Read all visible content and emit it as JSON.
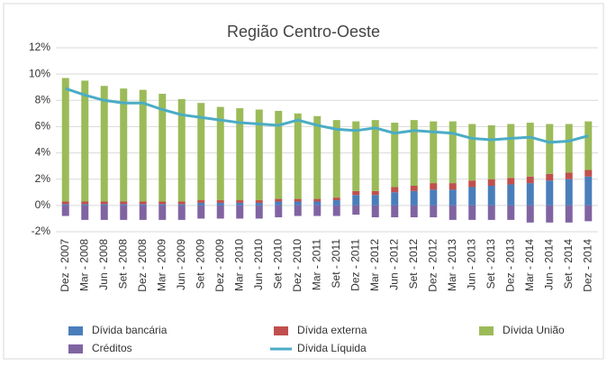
{
  "chart_data": {
    "type": "bar",
    "title": "Região Centro-Oeste",
    "stacked": true,
    "grid": true,
    "categories": [
      "Dez - 2007",
      "Mar - 2008",
      "Jun - 2008",
      "Set - 2008",
      "Dez - 2008",
      "Mar - 2009",
      "Jun - 2009",
      "Set - 2009",
      "Dez - 2009",
      "Mar - 2010",
      "Jun - 2010",
      "Set - 2010",
      "Dez - 2010",
      "Mar - 2011",
      "Set - 2011",
      "Dez - 2011",
      "Mar - 2012",
      "Jun - 2012",
      "Set - 2012",
      "Dez - 2012",
      "Mar - 2013",
      "Jun - 2013",
      "Set - 2013",
      "Dez - 2013",
      "Mar - 2014",
      "Jun - 2014",
      "Set - 2014",
      "Dez - 2014"
    ],
    "series": [
      {
        "name": "Dívida bancária",
        "type": "bar",
        "color": "#4a7ebb",
        "values": [
          0.1,
          0.1,
          0.1,
          0.1,
          0.1,
          0.1,
          0.1,
          0.2,
          0.2,
          0.2,
          0.2,
          0.3,
          0.3,
          0.3,
          0.4,
          0.8,
          0.8,
          1.0,
          1.1,
          1.2,
          1.2,
          1.4,
          1.5,
          1.6,
          1.7,
          1.9,
          2.0,
          2.2
        ]
      },
      {
        "name": "Dívida externa",
        "type": "bar",
        "color": "#c0504d",
        "values": [
          0.2,
          0.2,
          0.2,
          0.2,
          0.2,
          0.2,
          0.2,
          0.2,
          0.2,
          0.2,
          0.2,
          0.2,
          0.2,
          0.2,
          0.2,
          0.3,
          0.3,
          0.4,
          0.4,
          0.5,
          0.5,
          0.5,
          0.5,
          0.5,
          0.5,
          0.5,
          0.5,
          0.5
        ]
      },
      {
        "name": "Dívida União",
        "type": "bar",
        "color": "#9bbb59",
        "values": [
          9.4,
          9.2,
          8.8,
          8.6,
          8.5,
          8.2,
          7.8,
          7.4,
          7.1,
          7.0,
          6.9,
          6.7,
          6.5,
          6.3,
          5.9,
          5.3,
          5.4,
          4.9,
          5.0,
          4.7,
          4.7,
          4.3,
          4.1,
          4.1,
          4.1,
          3.8,
          3.7,
          3.7
        ]
      },
      {
        "name": "Créditos",
        "type": "bar",
        "color": "#8064a2",
        "values": [
          -0.8,
          -1.1,
          -1.1,
          -1.1,
          -1.1,
          -1.1,
          -1.1,
          -1.0,
          -1.0,
          -1.0,
          -1.0,
          -0.9,
          -0.8,
          -0.8,
          -0.8,
          -0.7,
          -0.9,
          -0.9,
          -0.9,
          -0.9,
          -1.1,
          -1.1,
          -1.1,
          -1.1,
          -1.3,
          -1.3,
          -1.3,
          -1.2
        ]
      },
      {
        "name": "Dívida Líquida",
        "type": "line",
        "color": "#4bacc6",
        "values": [
          8.9,
          8.4,
          8.0,
          7.8,
          7.8,
          7.3,
          6.9,
          6.7,
          6.5,
          6.3,
          6.2,
          6.1,
          6.5,
          6.1,
          5.8,
          5.7,
          5.9,
          5.5,
          5.7,
          5.6,
          5.5,
          5.1,
          5.0,
          5.1,
          5.2,
          4.8,
          4.9,
          5.3
        ]
      }
    ],
    "ylim": [
      -2,
      12
    ],
    "yticks": [
      {
        "value": -2,
        "label": "-2%"
      },
      {
        "value": 0,
        "label": "0%"
      },
      {
        "value": 2,
        "label": "2%"
      },
      {
        "value": 4,
        "label": "4%"
      },
      {
        "value": 6,
        "label": "6%"
      },
      {
        "value": 8,
        "label": "8%"
      },
      {
        "value": 10,
        "label": "10%"
      },
      {
        "value": 12,
        "label": "12%"
      }
    ]
  }
}
